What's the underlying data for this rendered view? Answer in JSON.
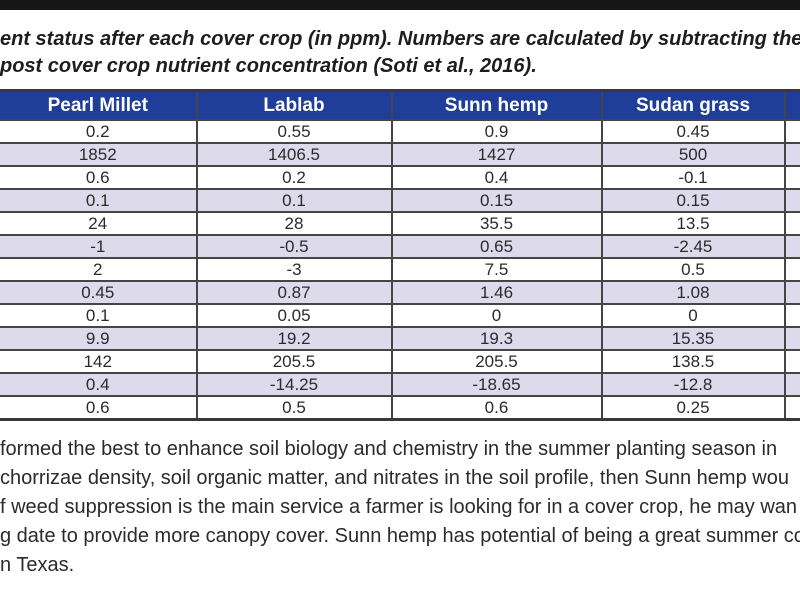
{
  "caption": {
    "line1": "ent status after each cover crop (in ppm). Numbers are calculated by subtracting the pre-co",
    "line2": "post cover crop nutrient concentration (Soti et al., 2016)."
  },
  "table": {
    "headers": [
      "Pearl Millet",
      "Lablab",
      "Sunn hemp",
      "Sudan grass"
    ],
    "rows": [
      [
        "0.2",
        "0.55",
        "0.9",
        "0.45"
      ],
      [
        "1852",
        "1406.5",
        "1427",
        "500"
      ],
      [
        "0.6",
        "0.2",
        "0.4",
        "-0.1"
      ],
      [
        "0.1",
        "0.1",
        "0.15",
        "0.15"
      ],
      [
        "24",
        "28",
        "35.5",
        "13.5"
      ],
      [
        "-1",
        "-0.5",
        "0.65",
        "-2.45"
      ],
      [
        "2",
        "-3",
        "7.5",
        "0.5"
      ],
      [
        "0.45",
        "0.87",
        "1.46",
        "1.08"
      ],
      [
        "0.1",
        "0.05",
        "0",
        "0"
      ],
      [
        "9.9",
        "19.2",
        "19.3",
        "15.35"
      ],
      [
        "142",
        "205.5",
        "205.5",
        "138.5"
      ],
      [
        "0.4",
        "-14.25",
        "-18.65",
        "-12.8"
      ],
      [
        "0.6",
        "0.5",
        "0.6",
        "0.25"
      ]
    ]
  },
  "body": {
    "lines": [
      "formed the best to enhance soil biology and chemistry in the summer planting season in",
      "chorrizae density, soil organic matter, and nitrates in the soil profile, then Sunn hemp wou",
      "f weed suppression is the main service a farmer is looking for in a cover crop, he may wan",
      "g date to provide more canopy cover. Sunn hemp has potential of being a great summer co",
      "n Texas."
    ]
  },
  "colors": {
    "header_bg": "#1f3e99",
    "alt_row_bg": "#dcdaeb",
    "grid_border": "#454547",
    "text": "#231f20",
    "top_bar": "#161616"
  }
}
